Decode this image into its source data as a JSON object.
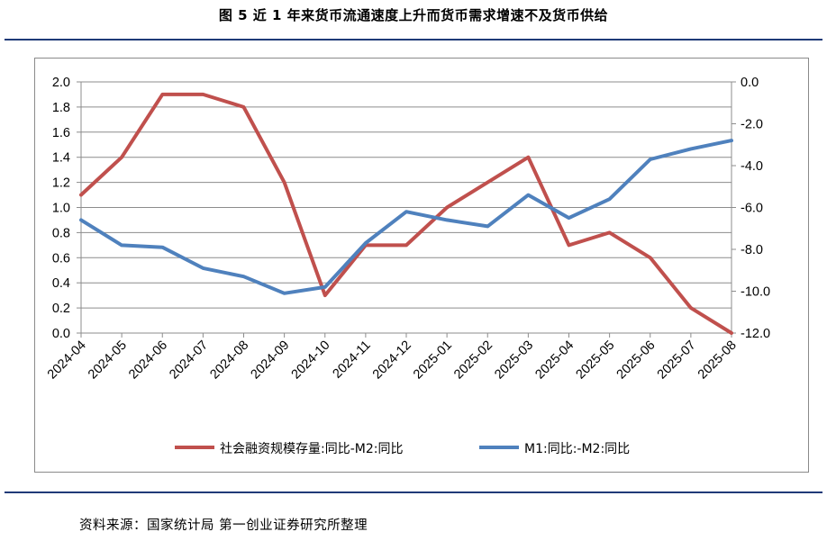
{
  "figure": {
    "title": "图 5     近 1 年来货币流通速度上升而货币需求增速不及货币供给",
    "source": "资料来源：国家统计局   第一创业证券研究所整理"
  },
  "chart_data": {
    "type": "line",
    "x": [
      "2024-04",
      "2024-05",
      "2024-06",
      "2024-07",
      "2024-08",
      "2024-09",
      "2024-10",
      "2024-11",
      "2024-12",
      "2025-01",
      "2025-02",
      "2025-03",
      "2025-04",
      "2025-05",
      "2025-06",
      "2025-07",
      "2025-08"
    ],
    "series": [
      {
        "name": "社会融资规模存量:同比-M2:同比",
        "axis": "left",
        "color": "#c0504d",
        "values": [
          1.1,
          1.4,
          1.9,
          1.9,
          1.8,
          1.2,
          0.3,
          0.7,
          0.7,
          1.0,
          1.2,
          1.4,
          0.7,
          0.8,
          0.6,
          0.2,
          0.0
        ]
      },
      {
        "name": "M1:同比:-M2:同比",
        "axis": "right",
        "color": "#4f81bd",
        "values": [
          -6.6,
          -7.8,
          -7.9,
          -8.9,
          -9.3,
          -10.1,
          -9.8,
          -7.7,
          -6.2,
          -6.6,
          -6.9,
          -5.4,
          -6.5,
          -5.6,
          -3.7,
          -3.2,
          -2.8
        ]
      }
    ],
    "y_left": {
      "lim": [
        0.0,
        2.0
      ],
      "ticks": [
        "0.0",
        "0.2",
        "0.4",
        "0.6",
        "0.8",
        "1.0",
        "1.2",
        "1.4",
        "1.6",
        "1.8",
        "2.0"
      ]
    },
    "y_right": {
      "lim": [
        -12.0,
        0.0
      ],
      "ticks": [
        "-12.0",
        "-10.0",
        "-8.0",
        "-6.0",
        "-4.0",
        "-2.0",
        "0.0"
      ]
    },
    "grid": true,
    "legend_position": "bottom"
  }
}
